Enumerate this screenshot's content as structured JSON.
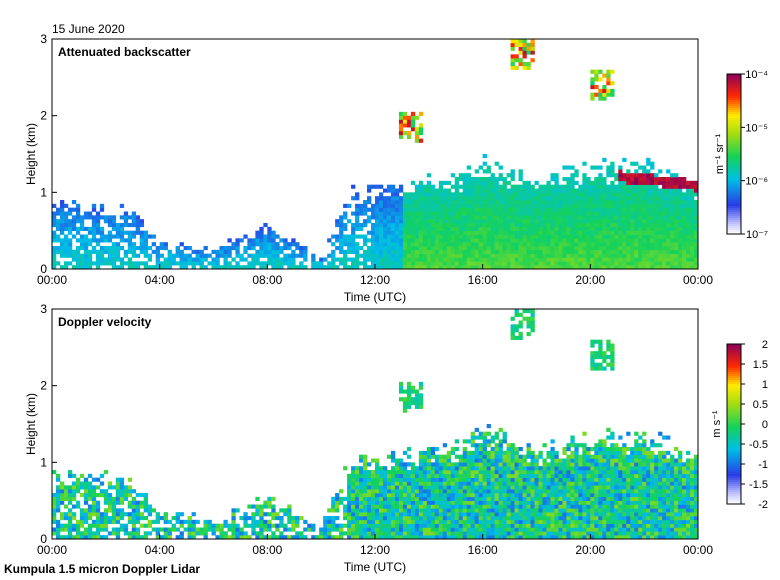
{
  "date_label": "15 June 2020",
  "footer": "Kumpula 1.5 micron Doppler Lidar",
  "chart_data": [
    {
      "type": "heatmap",
      "title": "Attenuated backscatter",
      "xlabel": "Time (UTC)",
      "ylabel": "Height (km)",
      "xlim": [
        0,
        24
      ],
      "ylim": [
        0,
        3
      ],
      "xticks": [
        "00:00",
        "04:00",
        "08:00",
        "12:00",
        "16:00",
        "20:00",
        "00:00"
      ],
      "yticks": [
        "0",
        "1",
        "2",
        "3"
      ],
      "colorbar": {
        "label": "m⁻¹ sr⁻¹",
        "scale": "log",
        "range": [
          1e-07,
          0.0001
        ],
        "ticks": [
          "10⁻⁷",
          "10⁻⁶",
          "10⁻⁵",
          "10⁻⁴"
        ]
      },
      "colormap": "white-blue-cyan-green-yellow-red-purple",
      "features": {
        "boundary_layer_top_km": [
          [
            0,
            0.85
          ],
          [
            3,
            0.75
          ],
          [
            4,
            0.35
          ],
          [
            6,
            0.25
          ],
          [
            8,
            0.55
          ],
          [
            10,
            0.15
          ],
          [
            11,
            0.95
          ],
          [
            13,
            1.05
          ],
          [
            15,
            1.15
          ],
          [
            16,
            1.35
          ],
          [
            18,
            1.1
          ],
          [
            20,
            1.25
          ],
          [
            22,
            1.3
          ],
          [
            24,
            1.05
          ]
        ],
        "cloud_layer_km": {
          "time_range": [
            21,
            24
          ],
          "height": 1.15
        },
        "elevated_layers_km": [
          [
            17.5,
            2.8
          ],
          [
            20.5,
            2.4
          ],
          [
            13.3,
            1.85
          ]
        ]
      }
    },
    {
      "type": "heatmap",
      "title": "Doppler velocity",
      "xlabel": "Time (UTC)",
      "ylabel": "Height (km)",
      "xlim": [
        0,
        24
      ],
      "ylim": [
        0,
        3
      ],
      "xticks": [
        "00:00",
        "04:00",
        "08:00",
        "12:00",
        "16:00",
        "20:00",
        "00:00"
      ],
      "yticks": [
        "0",
        "1",
        "2",
        "3"
      ],
      "colorbar": {
        "label": "m s⁻¹",
        "scale": "linear",
        "range": [
          -2,
          2
        ],
        "ticks": [
          "2",
          "1.5",
          "1",
          "0.5",
          "0",
          "-0.5",
          "-1",
          "-1.5",
          "-2"
        ]
      },
      "colormap": "white-blue-cyan-green-yellow-red-purple"
    }
  ]
}
